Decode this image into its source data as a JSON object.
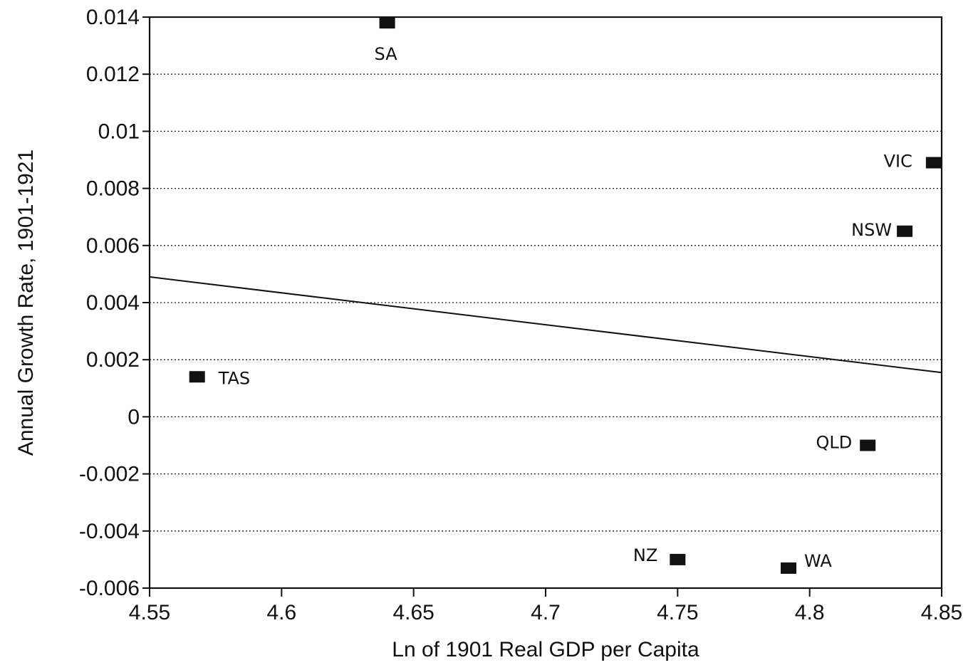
{
  "chart_data": {
    "type": "scatter",
    "title": "",
    "xlabel": "Ln of 1901 Real GDP per Capita",
    "ylabel": "Annual Growth Rate, 1901-1921",
    "xlim": [
      4.55,
      4.85
    ],
    "ylim": [
      -0.006,
      0.014
    ],
    "x_ticks": [
      "4.55",
      "4.6",
      "4.65",
      "4.7",
      "4.75",
      "4.8",
      "4.85"
    ],
    "y_ticks": [
      "-0.006",
      "-0.004",
      "-0.002",
      "0",
      "0.002",
      "0.004",
      "0.006",
      "0.008",
      "0.01",
      "0.012",
      "0.014"
    ],
    "grid": "horizontal dotted",
    "points": [
      {
        "label": "SA",
        "x": 4.64,
        "y": 0.0138
      },
      {
        "label": "VIC",
        "x": 4.847,
        "y": 0.0089
      },
      {
        "label": "NSW",
        "x": 4.836,
        "y": 0.0065
      },
      {
        "label": "TAS",
        "x": 4.568,
        "y": 0.0014
      },
      {
        "label": "QLD",
        "x": 4.822,
        "y": -0.001
      },
      {
        "label": "NZ",
        "x": 4.75,
        "y": -0.005
      },
      {
        "label": "WA",
        "x": 4.792,
        "y": -0.0053
      }
    ],
    "trend_line": {
      "x1": 4.55,
      "y1": 0.0049,
      "x2": 4.85,
      "y2": 0.00155
    },
    "marker_color": "#111111",
    "line_color": "#111111"
  }
}
